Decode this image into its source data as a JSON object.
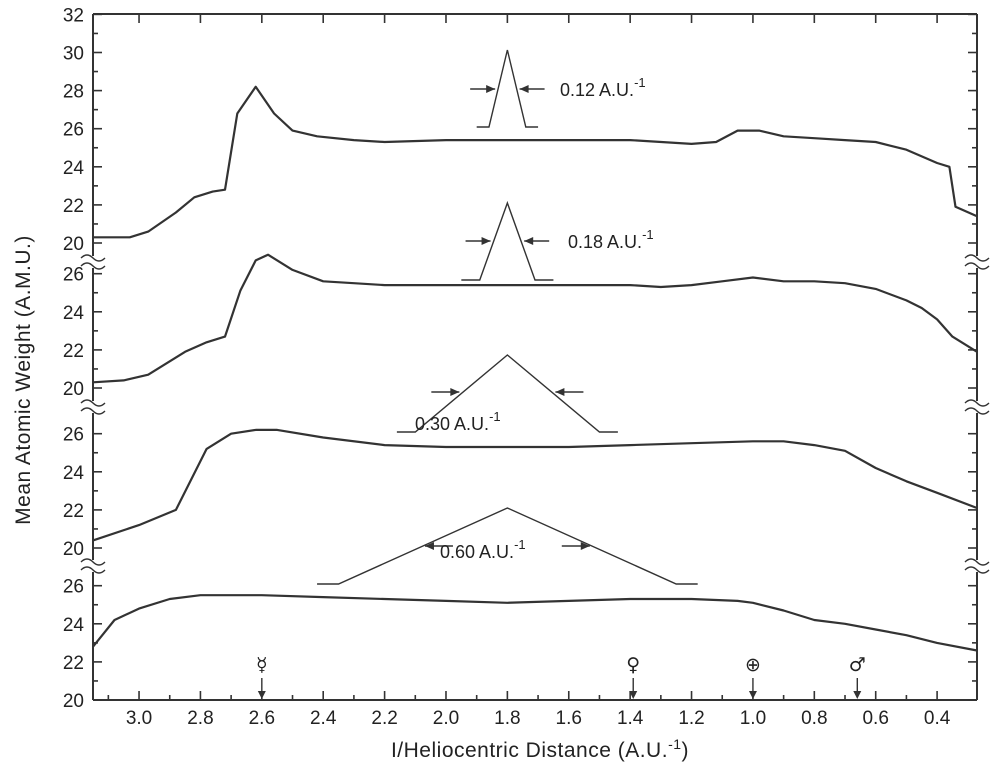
{
  "chart_data": {
    "type": "line",
    "title": "",
    "xlabel": "I/Heliocentric Distance (A.U.",
    "xlabel_superscript": "-1",
    "xlabel_close": ")",
    "ylabel": "Mean Atomic Weight (A.M.U.)",
    "x_reversed": true,
    "xlim": [
      3.15,
      0.27
    ],
    "x_ticks": [
      3.0,
      2.8,
      2.6,
      2.4,
      2.2,
      2.0,
      1.8,
      1.6,
      1.4,
      1.2,
      1.0,
      0.8,
      0.6,
      0.4
    ],
    "x_tick_labels": [
      "3.0",
      "2.8",
      "2.6",
      "2.4",
      "2.2",
      "2.0",
      "1.8",
      "1.6",
      "1.4",
      "1.2",
      "1.0",
      "0.8",
      "0.6",
      "0.4"
    ],
    "grid": false,
    "panels": [
      {
        "ylim": [
          20,
          32
        ],
        "y_ticks": [
          20,
          22,
          24,
          26,
          28,
          30,
          32
        ],
        "kernel_width": "0.12 A.U.",
        "kernel_unit_superscript": "-1",
        "x": [
          3.15,
          3.03,
          2.97,
          2.88,
          2.82,
          2.76,
          2.72,
          2.68,
          2.62,
          2.56,
          2.5,
          2.42,
          2.3,
          2.2,
          2.0,
          1.8,
          1.6,
          1.5,
          1.4,
          1.2,
          1.12,
          1.05,
          0.98,
          0.9,
          0.8,
          0.7,
          0.6,
          0.5,
          0.4,
          0.36,
          0.34,
          0.27
        ],
        "y": [
          20.3,
          20.3,
          20.6,
          21.6,
          22.4,
          22.7,
          22.8,
          26.8,
          28.2,
          26.8,
          25.9,
          25.6,
          25.4,
          25.3,
          25.4,
          25.4,
          25.4,
          25.4,
          25.4,
          25.2,
          25.3,
          25.9,
          25.9,
          25.6,
          25.5,
          25.4,
          25.3,
          24.9,
          24.2,
          24.0,
          21.9,
          21.4
        ]
      },
      {
        "ylim": [
          20,
          27
        ],
        "y_ticks": [
          20,
          22,
          24,
          26
        ],
        "kernel_width": "0.18 A.U.",
        "kernel_unit_superscript": "-1",
        "x": [
          3.15,
          3.05,
          2.97,
          2.85,
          2.78,
          2.72,
          2.67,
          2.62,
          2.58,
          2.5,
          2.4,
          2.3,
          2.2,
          2.0,
          1.8,
          1.6,
          1.4,
          1.3,
          1.2,
          1.1,
          1.0,
          0.9,
          0.8,
          0.7,
          0.6,
          0.5,
          0.45,
          0.4,
          0.35,
          0.27
        ],
        "y": [
          20.3,
          20.4,
          20.7,
          21.9,
          22.4,
          22.7,
          25.1,
          26.7,
          27.0,
          26.2,
          25.6,
          25.5,
          25.4,
          25.4,
          25.4,
          25.4,
          25.4,
          25.3,
          25.4,
          25.6,
          25.8,
          25.6,
          25.6,
          25.5,
          25.2,
          24.6,
          24.2,
          23.6,
          22.7,
          21.9
        ]
      },
      {
        "ylim": [
          20,
          27
        ],
        "y_ticks": [
          20,
          22,
          24,
          26
        ],
        "kernel_width": "0.30 A.U.",
        "kernel_unit_superscript": "-1",
        "x": [
          3.15,
          3.0,
          2.88,
          2.78,
          2.7,
          2.62,
          2.55,
          2.4,
          2.2,
          2.0,
          1.8,
          1.6,
          1.4,
          1.2,
          1.0,
          0.9,
          0.8,
          0.7,
          0.6,
          0.5,
          0.4,
          0.27
        ],
        "y": [
          20.4,
          21.2,
          22.0,
          25.2,
          26.0,
          26.2,
          26.2,
          25.8,
          25.4,
          25.3,
          25.3,
          25.3,
          25.4,
          25.5,
          25.6,
          25.6,
          25.4,
          25.1,
          24.2,
          23.5,
          22.9,
          22.1
        ]
      },
      {
        "ylim": [
          20,
          27
        ],
        "y_ticks": [
          20,
          22,
          24,
          26
        ],
        "kernel_width": "0.60 A.U.",
        "kernel_unit_superscript": "-1",
        "x": [
          3.15,
          3.08,
          3.0,
          2.9,
          2.8,
          2.6,
          2.4,
          2.2,
          2.0,
          1.8,
          1.6,
          1.4,
          1.2,
          1.05,
          1.0,
          0.9,
          0.8,
          0.7,
          0.6,
          0.5,
          0.4,
          0.27
        ],
        "y": [
          22.8,
          24.2,
          24.8,
          25.3,
          25.5,
          25.5,
          25.4,
          25.3,
          25.2,
          25.1,
          25.2,
          25.3,
          25.3,
          25.2,
          25.1,
          24.7,
          24.2,
          24.0,
          23.7,
          23.4,
          23.0,
          22.6
        ]
      }
    ],
    "planets": [
      {
        "name": "Mercury",
        "symbol": "☿",
        "x": 2.6
      },
      {
        "name": "Venus",
        "symbol": "♀",
        "x": 1.39
      },
      {
        "name": "Earth",
        "symbol": "⊕",
        "x": 1.0
      },
      {
        "name": "Mars",
        "symbol": "♂",
        "x": 0.66
      }
    ]
  }
}
